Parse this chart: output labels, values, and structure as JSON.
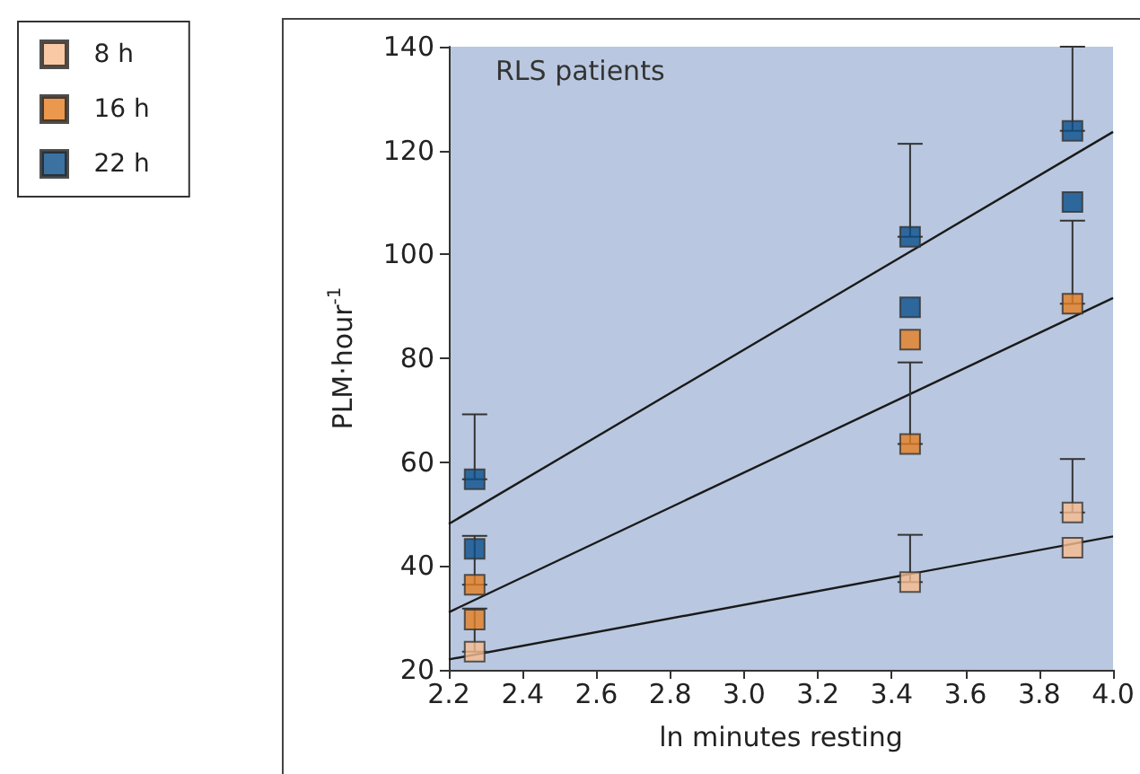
{
  "chart_data": {
    "type": "scatter",
    "xlabel": "ln minutes resting",
    "ylabel": "PLM·hour$^{-1}$",
    "annotations": [
      "RLS patients"
    ],
    "xlim": [
      2.2,
      4.0
    ],
    "xticks": [
      {
        "value": 2.2,
        "label": "2.2"
      },
      {
        "value": 2.4,
        "label": "2.4"
      },
      {
        "value": 2.6,
        "label": "2.6"
      },
      {
        "value": 2.8,
        "label": "2.8"
      },
      {
        "value": 3.0,
        "label": "3.0"
      },
      {
        "value": 3.2,
        "label": "3.2"
      },
      {
        "value": 3.4,
        "label": "3.4"
      },
      {
        "value": 3.6,
        "label": "3.6"
      },
      {
        "value": 3.8,
        "label": "3.8"
      },
      {
        "value": 4.0,
        "label": "4.0"
      }
    ],
    "ylim": [
      20,
      140
    ],
    "yticks": [
      20,
      40,
      60,
      80,
      100,
      120,
      140
    ],
    "grid": false,
    "legend": "top left",
    "marker": "square",
    "series": [
      {
        "name": "8 h",
        "color": "#f7bb8f",
        "x": [
          2.27,
          3.45,
          3.89,
          3.89
        ],
        "values": [
          23.5,
          36.9,
          50.3,
          43.5
        ],
        "errors": [
          [
            23.5,
            31.8
          ],
          [
            36.9,
            46.0
          ],
          [
            50.3,
            60.6
          ],
          null
        ]
      },
      {
        "name": "16 h",
        "color": "#e57e22",
        "x": [
          2.27,
          2.27,
          3.45,
          3.45,
          3.89
        ],
        "values": [
          36.4,
          29.7,
          83.6,
          63.5,
          90.5
        ],
        "errors": [
          [
            36.4,
            45.8
          ],
          null,
          null,
          [
            63.5,
            79.2
          ],
          [
            90.5,
            106.5
          ]
        ]
      },
      {
        "name": "22 h",
        "color": "#0b4f8a",
        "x": [
          2.27,
          2.27,
          3.45,
          3.45,
          3.89,
          3.89
        ],
        "values": [
          56.7,
          43.3,
          103.4,
          89.8,
          123.8,
          110.1
        ],
        "errors": [
          [
            56.7,
            69.2
          ],
          null,
          [
            103.4,
            121.3
          ],
          null,
          [
            123.8,
            140
          ],
          null
        ]
      },
      {
        "type": "line",
        "color": "#1a1a1a",
        "marker": "none",
        "x": [
          2.2,
          4.0
        ],
        "values": [
          22.0,
          45.7
        ]
      },
      {
        "type": "line",
        "color": "#1a1a1a",
        "marker": "none",
        "x": [
          2.2,
          4.0
        ],
        "values": [
          31.1,
          91.6
        ]
      },
      {
        "type": "line",
        "color": "#1a1a1a",
        "marker": "none",
        "x": [
          2.2,
          4.0
        ],
        "values": [
          48.1,
          123.6
        ]
      }
    ]
  }
}
